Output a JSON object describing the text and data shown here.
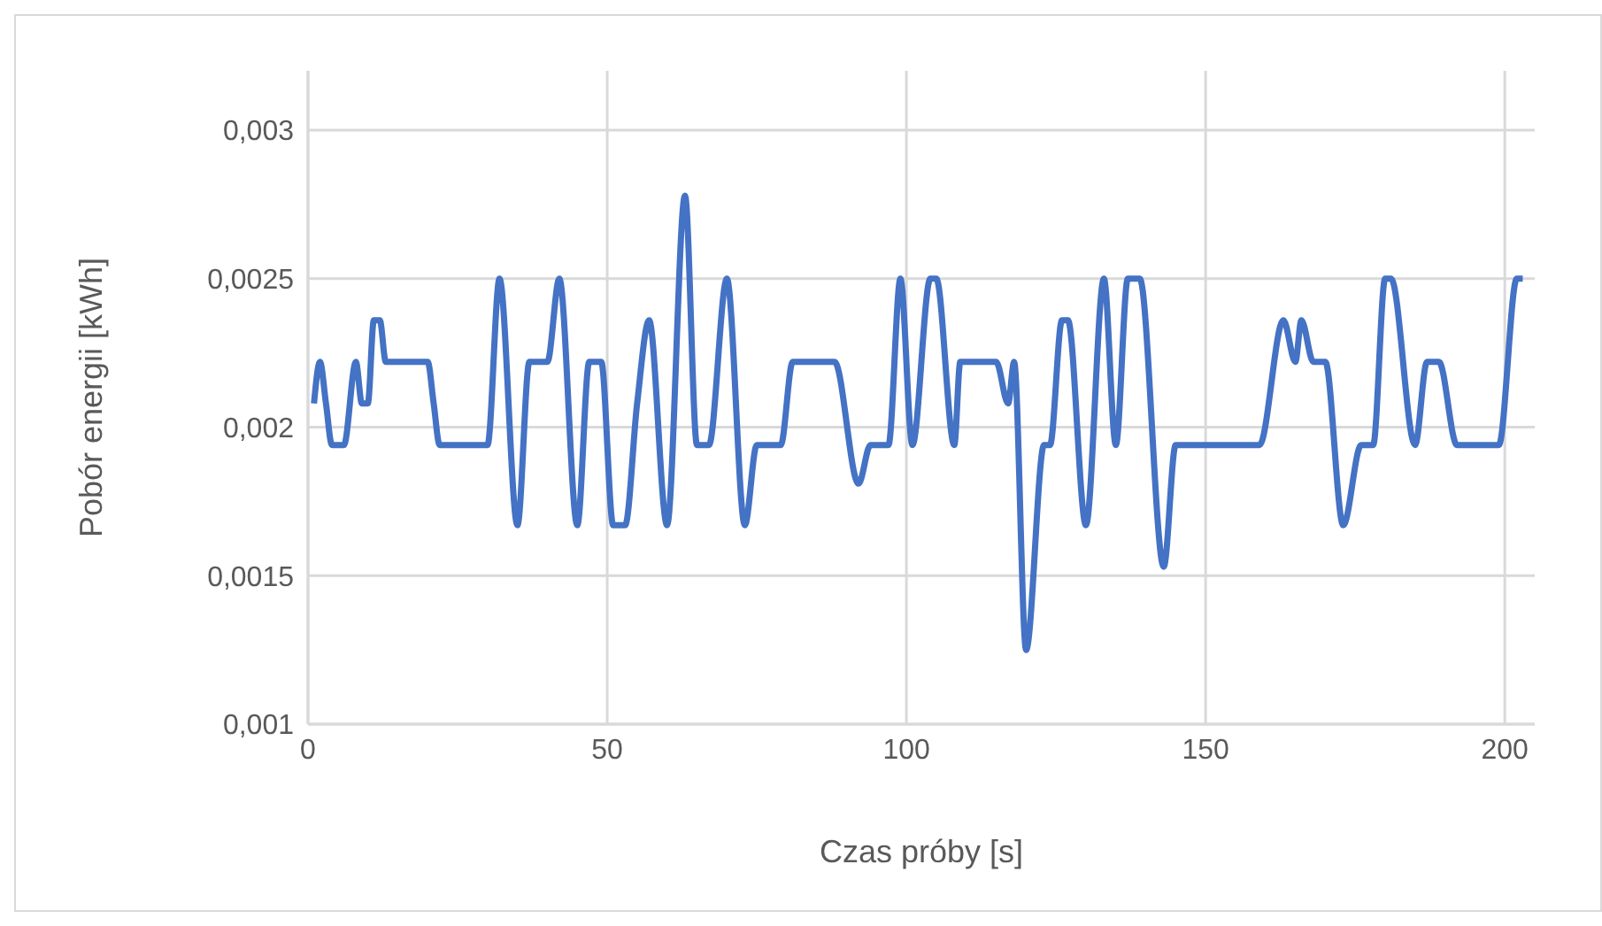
{
  "chart_data": {
    "type": "line",
    "xlabel": "Czas próby [s]",
    "ylabel": "Pobór energii [kWh]",
    "xlim": [
      0,
      205
    ],
    "xticks": [
      0,
      50,
      100,
      150,
      200
    ],
    "ylim": [
      0.001,
      0.0032
    ],
    "yticks": [
      {
        "value": 0.001,
        "label": "0,001"
      },
      {
        "value": 0.0015,
        "label": "0,0015"
      },
      {
        "value": 0.002,
        "label": "0,002"
      },
      {
        "value": 0.0025,
        "label": "0,0025"
      },
      {
        "value": 0.003,
        "label": "0,003"
      }
    ],
    "grid": true,
    "legend": false,
    "marker": "none",
    "line_style": "solid",
    "series": [
      {
        "color": "#4472c4",
        "x": [
          1,
          2,
          3,
          4,
          6,
          8,
          9,
          10,
          11,
          12,
          13,
          20,
          21,
          22,
          30,
          32,
          35,
          37,
          40,
          42,
          45,
          47,
          49,
          51,
          53,
          55,
          57,
          60,
          63,
          65,
          67,
          70,
          73,
          75,
          79,
          81,
          88,
          92,
          94,
          97,
          99,
          101,
          104,
          105,
          108,
          109,
          115,
          117,
          118,
          120,
          123,
          124,
          126,
          127,
          130,
          133,
          135,
          137,
          139,
          143,
          145,
          159,
          163,
          165,
          166,
          168,
          170,
          173,
          176,
          178,
          180,
          181,
          185,
          187,
          189,
          192,
          199,
          202,
          203
        ],
        "values": [
          0.00208,
          0.00222,
          0.00208,
          0.00194,
          0.00194,
          0.00222,
          0.00208,
          0.00208,
          0.00236,
          0.00236,
          0.00222,
          0.00222,
          0.00208,
          0.00194,
          0.00194,
          0.0025,
          0.00167,
          0.00222,
          0.00222,
          0.0025,
          0.00167,
          0.00222,
          0.00222,
          0.00167,
          0.00167,
          0.00208,
          0.00236,
          0.00167,
          0.00278,
          0.00194,
          0.00194,
          0.0025,
          0.00167,
          0.00194,
          0.00194,
          0.00222,
          0.00222,
          0.00181,
          0.00194,
          0.00194,
          0.0025,
          0.00194,
          0.0025,
          0.0025,
          0.00194,
          0.00222,
          0.00222,
          0.00208,
          0.00222,
          0.00125,
          0.00194,
          0.00194,
          0.00236,
          0.00236,
          0.00167,
          0.0025,
          0.00194,
          0.0025,
          0.0025,
          0.00153,
          0.00194,
          0.00194,
          0.00236,
          0.00222,
          0.00236,
          0.00222,
          0.00222,
          0.00167,
          0.00194,
          0.00194,
          0.0025,
          0.0025,
          0.00194,
          0.00222,
          0.00222,
          0.00194,
          0.00194,
          0.0025,
          0.0025
        ]
      }
    ]
  }
}
